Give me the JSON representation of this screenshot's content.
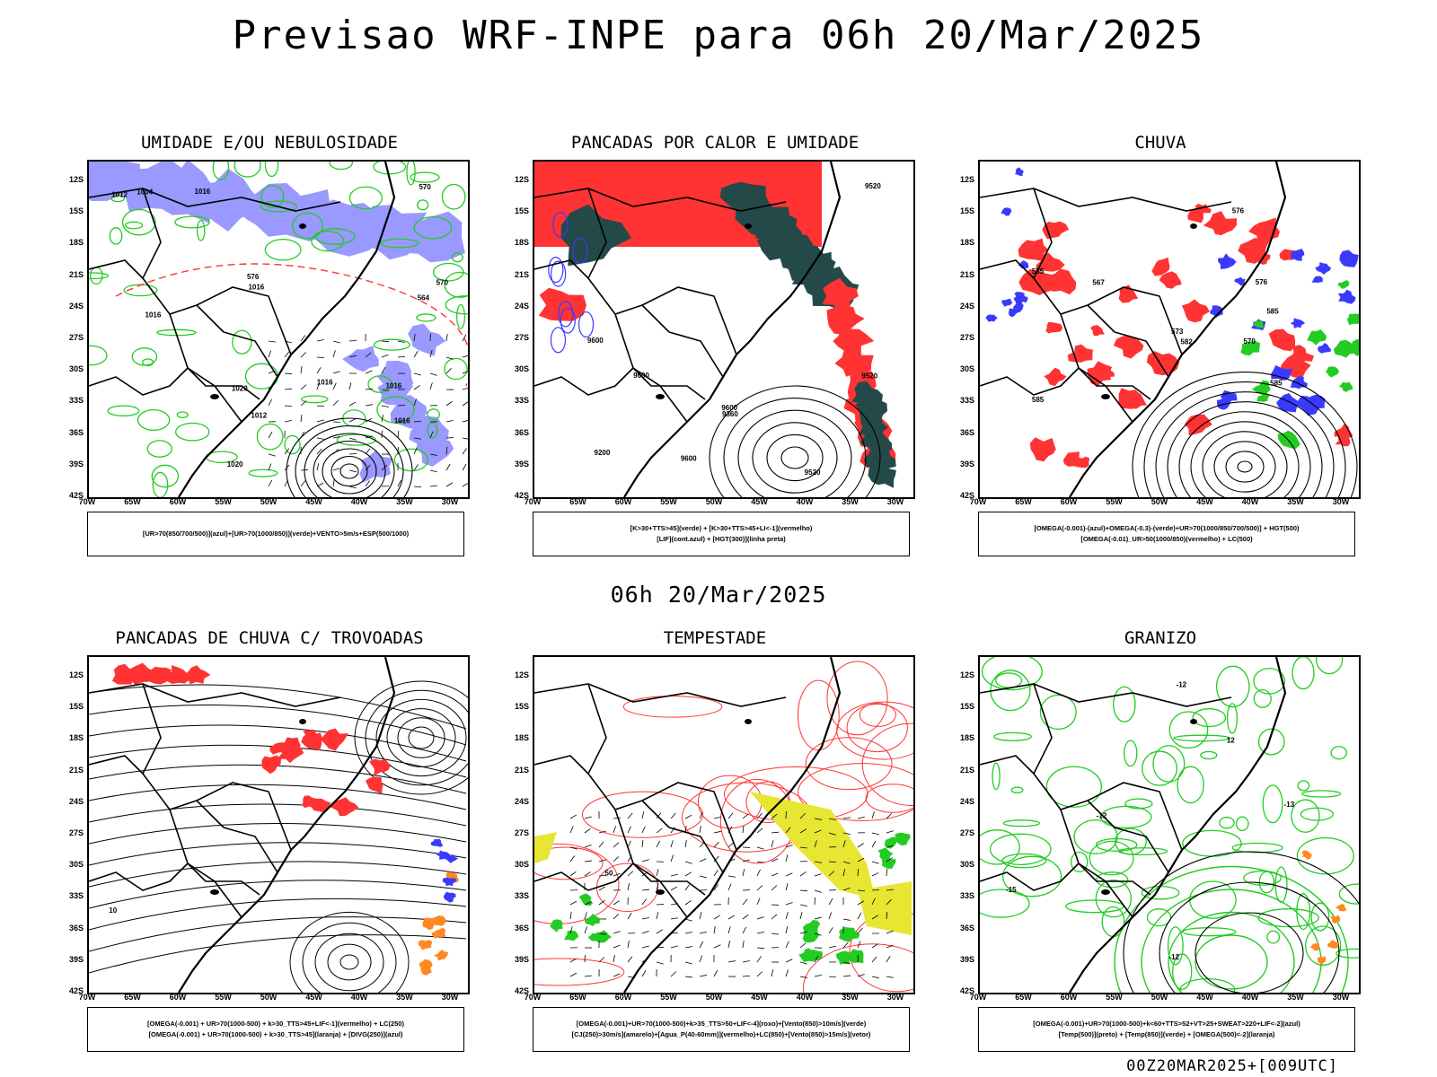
{
  "title": "Previsao WRF-INPE  para 06h 20/Mar/2025",
  "subtitle": "06h 20/Mar/2025",
  "footer": "00Z20MAR2025+[009UTC]",
  "axes": {
    "lat_labels": [
      "12S",
      "15S",
      "18S",
      "21S",
      "24S",
      "27S",
      "30S",
      "33S",
      "36S",
      "39S",
      "42S"
    ],
    "lon_labels": [
      "70W",
      "65W",
      "60W",
      "55W",
      "50W",
      "45W",
      "40W",
      "35W",
      "30W"
    ]
  },
  "colors": {
    "blue": "#3a3aff",
    "light_blue": "#9999ff",
    "green": "#22cc22",
    "red": "#ff3333",
    "dark_teal": "#234a48",
    "yellow": "#e6e633",
    "orange": "#ff8822",
    "black": "#000000"
  },
  "panels": [
    {
      "id": "umidade",
      "title": "UMIDADE E/OU NEBULOSIDADE",
      "legend": [
        "[UR>70(850/700/500)](azul)+[UR>70(1000/850)](verde)+VENTO>5m/s+ESP(500/1000)"
      ],
      "labels": [
        "1016",
        "1016",
        "1016",
        "1020",
        "1020",
        "1016",
        "1016",
        "1012",
        "1012",
        "1016",
        "1004",
        "570",
        "564",
        "570",
        "576"
      ]
    },
    {
      "id": "pancadas_calor",
      "title": "PANCADAS POR CALOR E UMIDADE",
      "legend": [
        "[K>30+TTS>45](verde)  +  [K>30+TTS>45+LI<-1](vermelho)",
        "[LIF](cont.azul)  +  [HGT(300)](linha preta)"
      ],
      "labels": [
        "9600",
        "9600",
        "9600",
        "9520",
        "9520",
        "9520",
        "9360",
        "9200",
        "9600"
      ]
    },
    {
      "id": "chuva",
      "title": "CHUVA",
      "legend": [
        "[OMEGA(-0.001)-(azul)+OMEGA(-0.3)-(verde)+UR>70(1000/850/700/500)]  +  HGT(500)",
        "[OMEGA(-0.01)_UR>50(1000/850)(vermelho)  +  LC(500)"
      ],
      "labels": [
        "585",
        "585",
        "585",
        "585",
        "576",
        "576",
        "573",
        "570",
        "567",
        "582"
      ]
    },
    {
      "id": "pancadas_trovoadas",
      "title": "PANCADAS DE CHUVA C/ TROVOADAS",
      "legend": [
        "[OMEGA(-0.001)  +  UR>70(1000-500)  +  k>30_TTS>45+LIF<-1](vermelho)  +  LC(250)",
        "[OMEGA(-0.001)  +  UR>70(1000-500)  +  k>30_TTS>45](laranja)  +  [DIVG(250)](azul)"
      ],
      "labels": [
        "10"
      ]
    },
    {
      "id": "tempestade",
      "title": "TEMPESTADE",
      "legend": [
        "[OMEGA(-0.001)+UR>70(1000-500)+k>35_TTS>50+LIF<-4](roxo)+[Vento(850)>10m/s](verde)",
        "[CJ(250)>30m/s](amarelo)+[Agua_P(40-60mm)](vermelho)+LC(850)+[Vento(850)>15m/s](vetor)"
      ],
      "labels": [
        "50"
      ]
    },
    {
      "id": "granizo",
      "title": "GRANIZO",
      "legend": [
        "[OMEGA(-0.001)+UR>70(1000-500)+k<60+TTS>52+VT>25+SWEAT>220+LIF<-2](azul)",
        "[Temp(500)](preto)  +  [Temp(850)](verde)  +  [OMEGA(500)<-2](laranja)"
      ],
      "labels": [
        "-13",
        "-15",
        "-12",
        "-12",
        "-12",
        "12"
      ]
    }
  ]
}
